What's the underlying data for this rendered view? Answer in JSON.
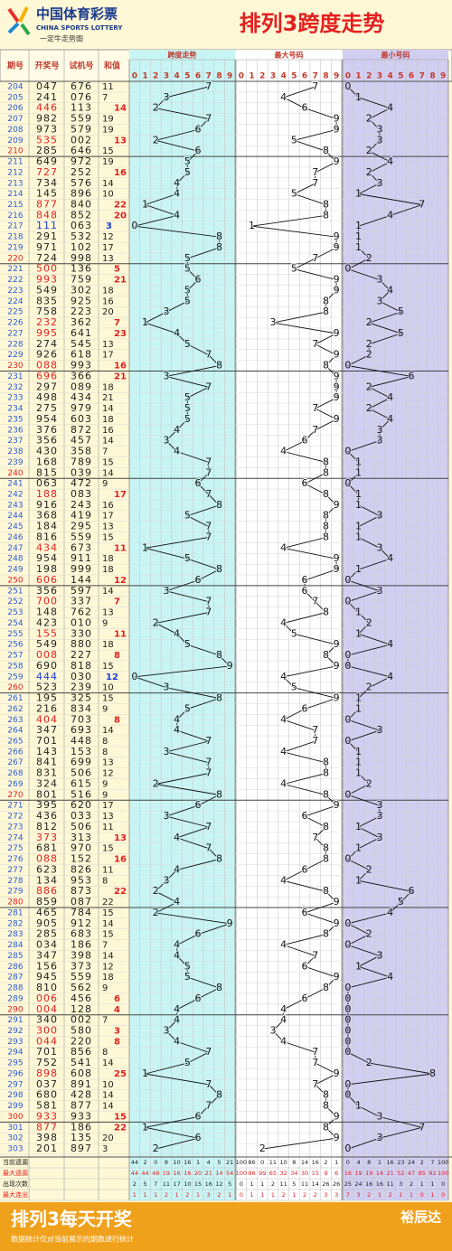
{
  "logo": {
    "name": "中国体育彩票",
    "english": "CHINA SPORTS LOTTERY",
    "slogan": "一定牛走势图"
  },
  "title": "排列3跨度走势",
  "columns": [
    "期号",
    "开奖号",
    "试机号",
    "和值"
  ],
  "sections": [
    "跨度走势",
    "最大号码",
    "最小号码"
  ],
  "digits": [
    0,
    1,
    2,
    3,
    4,
    5,
    6,
    7,
    8,
    9
  ],
  "rows": [
    {
      "period": 204,
      "number": "047",
      "trial": "676",
      "sum": 11,
      "span": 7,
      "max": 7,
      "min": 0
    },
    {
      "period": 205,
      "number": "241",
      "trial": "076",
      "sum": 7,
      "span": 3,
      "max": 4,
      "min": 1
    },
    {
      "period": 206,
      "number": "446",
      "trial": "113",
      "sum": 14,
      "span": 2,
      "max": 6,
      "min": 4
    },
    {
      "period": 207,
      "number": "982",
      "trial": "559",
      "sum": 19,
      "span": 7,
      "max": 9,
      "min": 2
    },
    {
      "period": 208,
      "number": "973",
      "trial": "579",
      "sum": 19,
      "span": 6,
      "max": 9,
      "min": 3
    },
    {
      "period": 209,
      "number": "535",
      "trial": "002",
      "sum": 13,
      "span": 2,
      "max": 5,
      "min": 3
    },
    {
      "period": 210,
      "number": "285",
      "trial": "646",
      "sum": 15,
      "span": 6,
      "max": 8,
      "min": 2
    },
    {
      "period": 211,
      "number": "649",
      "trial": "972",
      "sum": 19,
      "span": 5,
      "max": 9,
      "min": 4
    },
    {
      "period": 212,
      "number": "727",
      "trial": "252",
      "sum": 16,
      "span": 5,
      "max": 7,
      "min": 2
    },
    {
      "period": 213,
      "number": "734",
      "trial": "576",
      "sum": 14,
      "span": 4,
      "max": 7,
      "min": 3
    },
    {
      "period": 214,
      "number": "145",
      "trial": "896",
      "sum": 10,
      "span": 4,
      "max": 5,
      "min": 1
    },
    {
      "period": 215,
      "number": "877",
      "trial": "840",
      "sum": 22,
      "span": 1,
      "max": 8,
      "min": 7
    },
    {
      "period": 216,
      "number": "848",
      "trial": "852",
      "sum": 20,
      "span": 4,
      "max": 8,
      "min": 4
    },
    {
      "period": 217,
      "number": "111",
      "trial": "063",
      "sum": 3,
      "span": 0,
      "max": 1,
      "min": 1
    },
    {
      "period": 218,
      "number": "291",
      "trial": "532",
      "sum": 12,
      "span": 8,
      "max": 9,
      "min": 1
    },
    {
      "period": 219,
      "number": "971",
      "trial": "102",
      "sum": 17,
      "span": 8,
      "max": 9,
      "min": 1
    },
    {
      "period": 220,
      "number": "724",
      "trial": "998",
      "sum": 13,
      "span": 5,
      "max": 7,
      "min": 2
    },
    {
      "period": 221,
      "number": "500",
      "trial": "136",
      "sum": 5,
      "span": 5,
      "max": 5,
      "min": 0
    },
    {
      "period": 222,
      "number": "993",
      "trial": "759",
      "sum": 21,
      "span": 6,
      "max": 9,
      "min": 3
    },
    {
      "period": 223,
      "number": "549",
      "trial": "302",
      "sum": 18,
      "span": 5,
      "max": 9,
      "min": 4
    },
    {
      "period": 224,
      "number": "835",
      "trial": "925",
      "sum": 16,
      "span": 5,
      "max": 8,
      "min": 3
    },
    {
      "period": 225,
      "number": "758",
      "trial": "223",
      "sum": 20,
      "span": 3,
      "max": 8,
      "min": 5
    },
    {
      "period": 226,
      "number": "232",
      "trial": "362",
      "sum": 7,
      "span": 1,
      "max": 3,
      "min": 2
    },
    {
      "period": 227,
      "number": "995",
      "trial": "641",
      "sum": 23,
      "span": 4,
      "max": 9,
      "min": 5
    },
    {
      "period": 228,
      "number": "274",
      "trial": "545",
      "sum": 13,
      "span": 5,
      "max": 7,
      "min": 2
    },
    {
      "period": 229,
      "number": "926",
      "trial": "618",
      "sum": 17,
      "span": 7,
      "max": 9,
      "min": 2
    },
    {
      "period": 230,
      "number": "088",
      "trial": "993",
      "sum": 16,
      "span": 8,
      "max": 8,
      "min": 0
    },
    {
      "period": 231,
      "number": "696",
      "trial": "366",
      "sum": 21,
      "span": 3,
      "max": 9,
      "min": 6
    },
    {
      "period": 232,
      "number": "297",
      "trial": "089",
      "sum": 18,
      "span": 7,
      "max": 9,
      "min": 2
    },
    {
      "period": 233,
      "number": "498",
      "trial": "434",
      "sum": 21,
      "span": 5,
      "max": 9,
      "min": 4
    },
    {
      "period": 234,
      "number": "275",
      "trial": "979",
      "sum": 14,
      "span": 5,
      "max": 7,
      "min": 2
    },
    {
      "period": 235,
      "number": "954",
      "trial": "603",
      "sum": 18,
      "span": 5,
      "max": 9,
      "min": 4
    },
    {
      "period": 236,
      "number": "376",
      "trial": "872",
      "sum": 16,
      "span": 4,
      "max": 7,
      "min": 3
    },
    {
      "period": 237,
      "number": "356",
      "trial": "457",
      "sum": 14,
      "span": 3,
      "max": 6,
      "min": 3
    },
    {
      "period": 238,
      "number": "430",
      "trial": "358",
      "sum": 7,
      "span": 4,
      "max": 4,
      "min": 0
    },
    {
      "period": 239,
      "number": "168",
      "trial": "789",
      "sum": 15,
      "span": 7,
      "max": 8,
      "min": 1
    },
    {
      "period": 240,
      "number": "815",
      "trial": "039",
      "sum": 14,
      "span": 7,
      "max": 8,
      "min": 1
    },
    {
      "period": 241,
      "number": "063",
      "trial": "472",
      "sum": 9,
      "span": 6,
      "max": 6,
      "min": 0
    },
    {
      "period": 242,
      "number": "188",
      "trial": "083",
      "sum": 17,
      "span": 7,
      "max": 8,
      "min": 1
    },
    {
      "period": 243,
      "number": "916",
      "trial": "243",
      "sum": 16,
      "span": 8,
      "max": 9,
      "min": 1
    },
    {
      "period": 244,
      "number": "368",
      "trial": "419",
      "sum": 17,
      "span": 5,
      "max": 8,
      "min": 3
    },
    {
      "period": 245,
      "number": "184",
      "trial": "295",
      "sum": 13,
      "span": 7,
      "max": 8,
      "min": 1
    },
    {
      "period": 246,
      "number": "816",
      "trial": "559",
      "sum": 15,
      "span": 7,
      "max": 8,
      "min": 1
    },
    {
      "period": 247,
      "number": "434",
      "trial": "673",
      "sum": 11,
      "span": 1,
      "max": 4,
      "min": 3
    },
    {
      "period": 248,
      "number": "954",
      "trial": "911",
      "sum": 18,
      "span": 5,
      "max": 9,
      "min": 4
    },
    {
      "period": 249,
      "number": "198",
      "trial": "999",
      "sum": 18,
      "span": 8,
      "max": 9,
      "min": 1
    },
    {
      "period": 250,
      "number": "606",
      "trial": "144",
      "sum": 12,
      "span": 6,
      "max": 6,
      "min": 0
    },
    {
      "period": 251,
      "number": "356",
      "trial": "597",
      "sum": 14,
      "span": 3,
      "max": 6,
      "min": 3
    },
    {
      "period": 252,
      "number": "700",
      "trial": "337",
      "sum": 7,
      "span": 7,
      "max": 7,
      "min": 0
    },
    {
      "period": 253,
      "number": "148",
      "trial": "762",
      "sum": 13,
      "span": 7,
      "max": 8,
      "min": 1
    },
    {
      "period": 254,
      "number": "423",
      "trial": "010",
      "sum": 9,
      "span": 2,
      "max": 4,
      "min": 2
    },
    {
      "period": 255,
      "number": "155",
      "trial": "330",
      "sum": 11,
      "span": 4,
      "max": 5,
      "min": 1
    },
    {
      "period": 256,
      "number": "549",
      "trial": "880",
      "sum": 18,
      "span": 5,
      "max": 9,
      "min": 4
    },
    {
      "period": 257,
      "number": "008",
      "trial": "227",
      "sum": 8,
      "span": 8,
      "max": 8,
      "min": 0
    },
    {
      "period": 258,
      "number": "690",
      "trial": "818",
      "sum": 15,
      "span": 9,
      "max": 9,
      "min": 0
    },
    {
      "period": 259,
      "number": "444",
      "trial": "030",
      "sum": 12,
      "span": 0,
      "max": 4,
      "min": 4
    },
    {
      "period": 260,
      "number": "523",
      "trial": "239",
      "sum": 10,
      "span": 3,
      "max": 5,
      "min": 2
    },
    {
      "period": 261,
      "number": "195",
      "trial": "325",
      "sum": 15,
      "span": 8,
      "max": 9,
      "min": 1
    },
    {
      "period": 262,
      "number": "216",
      "trial": "834",
      "sum": 9,
      "span": 5,
      "max": 6,
      "min": 1
    },
    {
      "period": 263,
      "number": "404",
      "trial": "703",
      "sum": 8,
      "span": 4,
      "max": 4,
      "min": 0
    },
    {
      "period": 264,
      "number": "347",
      "trial": "693",
      "sum": 14,
      "span": 4,
      "max": 7,
      "min": 3
    },
    {
      "period": 265,
      "number": "701",
      "trial": "448",
      "sum": 8,
      "span": 7,
      "max": 7,
      "min": 0
    },
    {
      "period": 266,
      "number": "143",
      "trial": "153",
      "sum": 8,
      "span": 3,
      "max": 4,
      "min": 1
    },
    {
      "period": 267,
      "number": "841",
      "trial": "699",
      "sum": 13,
      "span": 7,
      "max": 8,
      "min": 1
    },
    {
      "period": 268,
      "number": "831",
      "trial": "506",
      "sum": 12,
      "span": 7,
      "max": 8,
      "min": 1
    },
    {
      "period": 269,
      "number": "324",
      "trial": "615",
      "sum": 9,
      "span": 2,
      "max": 4,
      "min": 2
    },
    {
      "period": 270,
      "number": "801",
      "trial": "516",
      "sum": 9,
      "span": 8,
      "max": 8,
      "min": 0
    },
    {
      "period": 271,
      "number": "395",
      "trial": "620",
      "sum": 17,
      "span": 6,
      "max": 9,
      "min": 3
    },
    {
      "period": 272,
      "number": "436",
      "trial": "033",
      "sum": 13,
      "span": 3,
      "max": 6,
      "min": 3
    },
    {
      "period": 273,
      "number": "812",
      "trial": "506",
      "sum": 11,
      "span": 7,
      "max": 8,
      "min": 1
    },
    {
      "period": 274,
      "number": "373",
      "trial": "313",
      "sum": 13,
      "span": 4,
      "max": 7,
      "min": 3
    },
    {
      "period": 275,
      "number": "681",
      "trial": "970",
      "sum": 15,
      "span": 7,
      "max": 8,
      "min": 1
    },
    {
      "period": 276,
      "number": "088",
      "trial": "152",
      "sum": 16,
      "span": 8,
      "max": 8,
      "min": 0
    },
    {
      "period": 277,
      "number": "623",
      "trial": "826",
      "sum": 11,
      "span": 4,
      "max": 6,
      "min": 2
    },
    {
      "period": 278,
      "number": "134",
      "trial": "953",
      "sum": 8,
      "span": 3,
      "max": 4,
      "min": 1
    },
    {
      "period": 279,
      "number": "886",
      "trial": "873",
      "sum": 22,
      "span": 2,
      "max": 8,
      "min": 6
    },
    {
      "period": 280,
      "number": "859",
      "trial": "087",
      "sum": 22,
      "span": 4,
      "max": 9,
      "min": 5
    },
    {
      "period": 281,
      "number": "465",
      "trial": "784",
      "sum": 15,
      "span": 2,
      "max": 6,
      "min": 4
    },
    {
      "period": 282,
      "number": "905",
      "trial": "912",
      "sum": 14,
      "span": 9,
      "max": 9,
      "min": 0
    },
    {
      "period": 283,
      "number": "285",
      "trial": "683",
      "sum": 15,
      "span": 6,
      "max": 8,
      "min": 2
    },
    {
      "period": 284,
      "number": "034",
      "trial": "186",
      "sum": 7,
      "span": 4,
      "max": 4,
      "min": 0
    },
    {
      "period": 285,
      "number": "347",
      "trial": "398",
      "sum": 14,
      "span": 4,
      "max": 7,
      "min": 3
    },
    {
      "period": 286,
      "number": "156",
      "trial": "373",
      "sum": 12,
      "span": 5,
      "max": 6,
      "min": 1
    },
    {
      "period": 287,
      "number": "945",
      "trial": "559",
      "sum": 18,
      "span": 5,
      "max": 9,
      "min": 4
    },
    {
      "period": 288,
      "number": "810",
      "trial": "562",
      "sum": 9,
      "span": 8,
      "max": 8,
      "min": 0
    },
    {
      "period": 289,
      "number": "006",
      "trial": "456",
      "sum": 6,
      "span": 6,
      "max": 6,
      "min": 0
    },
    {
      "period": 290,
      "number": "004",
      "trial": "128",
      "sum": 4,
      "span": 4,
      "max": 4,
      "min": 0
    },
    {
      "period": 291,
      "number": "340",
      "trial": "002",
      "sum": 7,
      "span": 4,
      "max": 4,
      "min": 0
    },
    {
      "period": 292,
      "number": "300",
      "trial": "580",
      "sum": 3,
      "span": 3,
      "max": 3,
      "min": 0
    },
    {
      "period": 293,
      "number": "044",
      "trial": "220",
      "sum": 8,
      "span": 4,
      "max": 4,
      "min": 0
    },
    {
      "period": 294,
      "number": "701",
      "trial": "856",
      "sum": 8,
      "span": 7,
      "max": 7,
      "min": 0
    },
    {
      "period": 295,
      "number": "752",
      "trial": "541",
      "sum": 14,
      "span": 5,
      "max": 7,
      "min": 2
    },
    {
      "period": 296,
      "number": "898",
      "trial": "608",
      "sum": 25,
      "span": 1,
      "max": 9,
      "min": 8
    },
    {
      "period": 297,
      "number": "037",
      "trial": "891",
      "sum": 10,
      "span": 7,
      "max": 7,
      "min": 0
    },
    {
      "period": 298,
      "number": "680",
      "trial": "428",
      "sum": 14,
      "span": 8,
      "max": 8,
      "min": 0
    },
    {
      "period": 299,
      "number": "581",
      "trial": "877",
      "sum": 14,
      "span": 7,
      "max": 8,
      "min": 1
    },
    {
      "period": 300,
      "number": "933",
      "trial": "933",
      "sum": 15,
      "span": 6,
      "max": 9,
      "min": 3
    },
    {
      "period": 301,
      "number": "877",
      "trial": "186",
      "sum": 22,
      "span": 1,
      "max": 8,
      "min": 7
    },
    {
      "period": 302,
      "number": "398",
      "trial": "135",
      "sum": 20,
      "span": 6,
      "max": 9,
      "min": 3
    },
    {
      "period": 303,
      "number": "201",
      "trial": "897",
      "sum": 3,
      "span": 2,
      "max": 2,
      "min": 0
    }
  ],
  "stats": [
    {
      "label": "当前遗漏",
      "values": [
        44,
        2,
        0,
        8,
        10,
        16,
        1,
        4,
        5,
        21,
        100,
        86,
        0,
        11,
        10,
        8,
        14,
        16,
        2,
        1,
        0,
        4,
        8,
        1,
        16,
        23,
        24,
        2,
        7,
        100
      ]
    },
    {
      "label": "最大遗漏",
      "values": [
        44,
        44,
        48,
        19,
        16,
        16,
        20,
        21,
        14,
        54,
        100,
        86,
        99,
        65,
        32,
        34,
        30,
        15,
        9,
        6,
        16,
        19,
        19,
        14,
        21,
        52,
        47,
        85,
        92,
        100
      ]
    },
    {
      "label": "出现次数",
      "values": [
        2,
        5,
        7,
        11,
        17,
        10,
        15,
        16,
        12,
        5,
        0,
        1,
        1,
        2,
        11,
        5,
        11,
        14,
        26,
        26,
        25,
        24,
        16,
        16,
        11,
        3,
        2,
        1,
        1,
        0
      ]
    },
    {
      "label": "最大连出",
      "values": [
        1,
        1,
        1,
        2,
        1,
        2,
        1,
        3,
        2,
        1,
        0,
        1,
        1,
        1,
        2,
        1,
        2,
        2,
        3,
        3,
        7,
        3,
        2,
        1,
        2,
        1,
        1,
        0,
        1,
        0
      ]
    }
  ],
  "banner": {
    "title": "排列3每天开奖",
    "note": "数据统计仅对当前展示的期数进行统计",
    "brand": "裕辰达"
  }
}
